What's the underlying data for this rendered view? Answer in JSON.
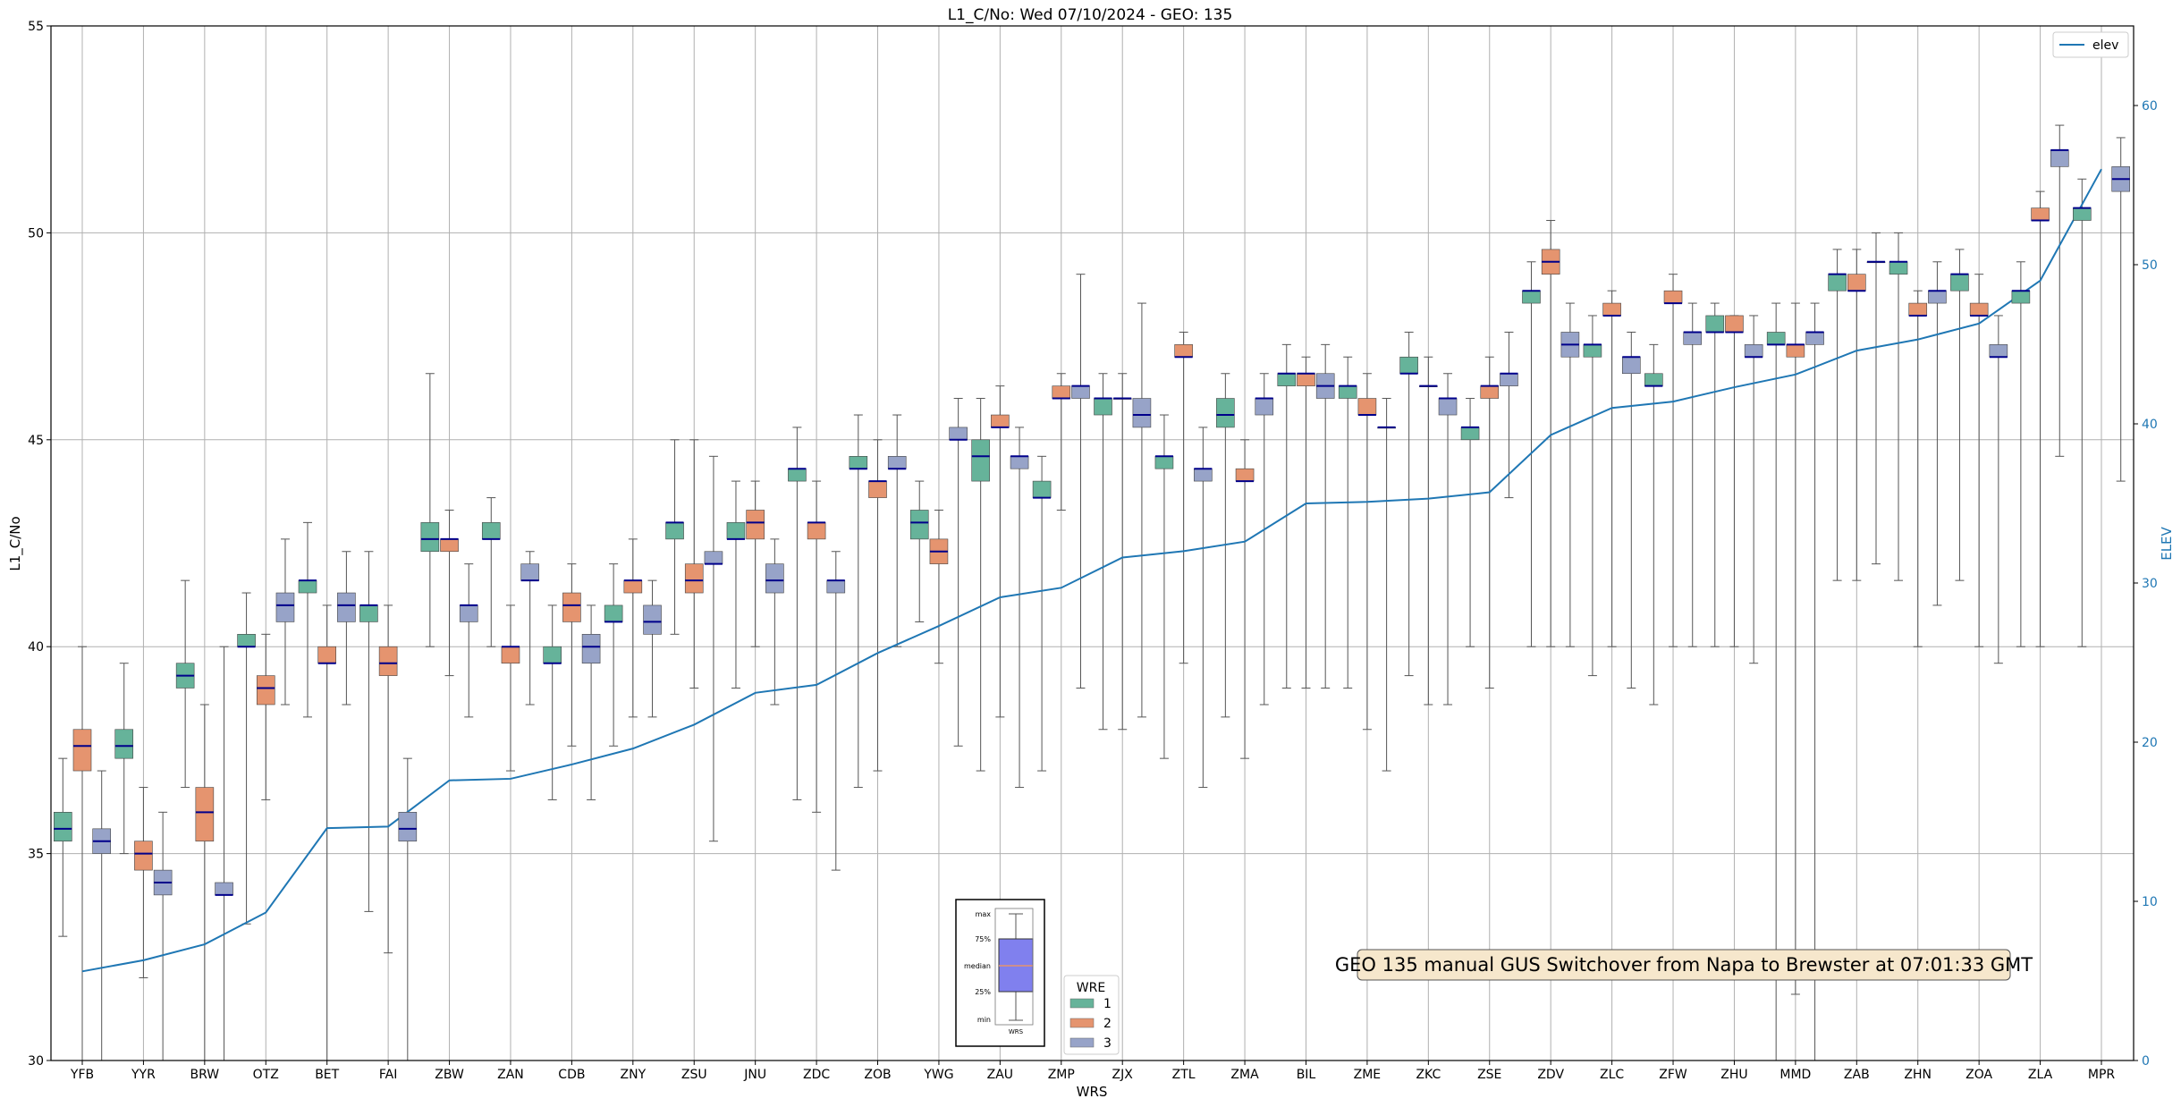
{
  "chart_data": {
    "type": "box",
    "title": "L1_C/No: Wed 07/10/2024 - GEO: 135",
    "xlabel": "WRS",
    "ylabel": "L1_C/No",
    "y2label": "ELEV",
    "ylim": [
      30,
      55
    ],
    "y2lim": [
      0,
      65
    ],
    "yticks": [
      30,
      35,
      40,
      45,
      50,
      55
    ],
    "y2ticks": [
      0,
      10,
      20,
      30,
      40,
      50,
      60
    ],
    "grid": true,
    "categories": [
      "YFB",
      "YYR",
      "BRW",
      "OTZ",
      "BET",
      "FAI",
      "ZBW",
      "ZAN",
      "CDB",
      "ZNY",
      "ZSU",
      "JNU",
      "ZDC",
      "ZOB",
      "YWG",
      "ZAU",
      "ZMP",
      "ZJX",
      "ZTL",
      "ZMA",
      "BIL",
      "ZME",
      "ZKC",
      "ZSE",
      "ZDV",
      "ZLC",
      "ZFW",
      "ZHU",
      "MMD",
      "ZAB",
      "ZHN",
      "ZOA",
      "ZLA",
      "MPR"
    ],
    "legend_title": "WRE",
    "series": [
      {
        "name": "1",
        "color": "#66b39a"
      },
      {
        "name": "2",
        "color": "#e5946f"
      },
      {
        "name": "3",
        "color": "#97a3c8"
      }
    ],
    "boxes": [
      {
        "station": "YFB",
        "wre": 1,
        "min": 33.0,
        "q1": 35.3,
        "median": 35.6,
        "q3": 36.0,
        "max": 37.3
      },
      {
        "station": "YFB",
        "wre": 2,
        "min": 30.0,
        "q1": 37.0,
        "median": 37.6,
        "q3": 38.0,
        "max": 40.0
      },
      {
        "station": "YFB",
        "wre": 3,
        "min": 30.0,
        "q1": 35.0,
        "median": 35.3,
        "q3": 35.6,
        "max": 37.0
      },
      {
        "station": "YYR",
        "wre": 1,
        "min": 35.0,
        "q1": 37.3,
        "median": 37.6,
        "q3": 38.0,
        "max": 39.6
      },
      {
        "station": "YYR",
        "wre": 2,
        "min": 32.0,
        "q1": 34.6,
        "median": 35.0,
        "q3": 35.3,
        "max": 36.6
      },
      {
        "station": "YYR",
        "wre": 3,
        "min": 30.0,
        "q1": 34.0,
        "median": 34.3,
        "q3": 34.6,
        "max": 36.0
      },
      {
        "station": "BRW",
        "wre": 1,
        "min": 36.6,
        "q1": 39.0,
        "median": 39.3,
        "q3": 39.6,
        "max": 41.6
      },
      {
        "station": "BRW",
        "wre": 2,
        "min": 30.0,
        "q1": 35.3,
        "median": 36.0,
        "q3": 36.6,
        "max": 38.6
      },
      {
        "station": "BRW",
        "wre": 3,
        "min": 30.0,
        "q1": 34.0,
        "median": 34.0,
        "q3": 34.3,
        "max": 40.0
      },
      {
        "station": "OTZ",
        "wre": 1,
        "min": 33.3,
        "q1": 40.0,
        "median": 40.0,
        "q3": 40.3,
        "max": 41.3
      },
      {
        "station": "OTZ",
        "wre": 2,
        "min": 36.3,
        "q1": 38.6,
        "median": 39.0,
        "q3": 39.3,
        "max": 40.3
      },
      {
        "station": "OTZ",
        "wre": 3,
        "min": 38.6,
        "q1": 40.6,
        "median": 41.0,
        "q3": 41.3,
        "max": 42.6
      },
      {
        "station": "BET",
        "wre": 1,
        "min": 38.3,
        "q1": 41.3,
        "median": 41.6,
        "q3": 41.6,
        "max": 43.0
      },
      {
        "station": "BET",
        "wre": 2,
        "min": 30.0,
        "q1": 39.6,
        "median": 39.6,
        "q3": 40.0,
        "max": 41.0
      },
      {
        "station": "BET",
        "wre": 3,
        "min": 38.6,
        "q1": 40.6,
        "median": 41.0,
        "q3": 41.3,
        "max": 42.3
      },
      {
        "station": "FAI",
        "wre": 1,
        "min": 33.6,
        "q1": 40.6,
        "median": 41.0,
        "q3": 41.0,
        "max": 42.3
      },
      {
        "station": "FAI",
        "wre": 2,
        "min": 32.6,
        "q1": 39.3,
        "median": 39.6,
        "q3": 40.0,
        "max": 41.0
      },
      {
        "station": "FAI",
        "wre": 3,
        "min": 30.0,
        "q1": 35.3,
        "median": 35.6,
        "q3": 36.0,
        "max": 37.3
      },
      {
        "station": "ZBW",
        "wre": 1,
        "min": 40.0,
        "q1": 42.3,
        "median": 42.6,
        "q3": 43.0,
        "max": 46.6
      },
      {
        "station": "ZBW",
        "wre": 2,
        "min": 39.3,
        "q1": 42.3,
        "median": 42.6,
        "q3": 42.6,
        "max": 43.3
      },
      {
        "station": "ZBW",
        "wre": 3,
        "min": 38.3,
        "q1": 40.6,
        "median": 41.0,
        "q3": 41.0,
        "max": 42.0
      },
      {
        "station": "ZAN",
        "wre": 1,
        "min": 40.0,
        "q1": 42.6,
        "median": 42.6,
        "q3": 43.0,
        "max": 43.6
      },
      {
        "station": "ZAN",
        "wre": 2,
        "min": 37.0,
        "q1": 39.6,
        "median": 40.0,
        "q3": 40.0,
        "max": 41.0
      },
      {
        "station": "ZAN",
        "wre": 3,
        "min": 38.6,
        "q1": 41.6,
        "median": 41.6,
        "q3": 42.0,
        "max": 42.3
      },
      {
        "station": "CDB",
        "wre": 1,
        "min": 36.3,
        "q1": 39.6,
        "median": 39.6,
        "q3": 40.0,
        "max": 41.0
      },
      {
        "station": "CDB",
        "wre": 2,
        "min": 37.6,
        "q1": 40.6,
        "median": 41.0,
        "q3": 41.3,
        "max": 42.0
      },
      {
        "station": "CDB",
        "wre": 3,
        "min": 36.3,
        "q1": 39.6,
        "median": 40.0,
        "q3": 40.3,
        "max": 41.0
      },
      {
        "station": "ZNY",
        "wre": 1,
        "min": 37.6,
        "q1": 40.6,
        "median": 40.6,
        "q3": 41.0,
        "max": 42.0
      },
      {
        "station": "ZNY",
        "wre": 2,
        "min": 38.3,
        "q1": 41.3,
        "median": 41.6,
        "q3": 41.6,
        "max": 42.6
      },
      {
        "station": "ZNY",
        "wre": 3,
        "min": 38.3,
        "q1": 40.3,
        "median": 40.6,
        "q3": 41.0,
        "max": 41.6
      },
      {
        "station": "ZSU",
        "wre": 1,
        "min": 40.3,
        "q1": 42.6,
        "median": 43.0,
        "q3": 43.0,
        "max": 45.0
      },
      {
        "station": "ZSU",
        "wre": 2,
        "min": 39.0,
        "q1": 41.3,
        "median": 41.6,
        "q3": 42.0,
        "max": 45.0
      },
      {
        "station": "ZSU",
        "wre": 3,
        "min": 35.3,
        "q1": 42.0,
        "median": 42.0,
        "q3": 42.3,
        "max": 44.6
      },
      {
        "station": "JNU",
        "wre": 1,
        "min": 39.0,
        "q1": 42.6,
        "median": 42.6,
        "q3": 43.0,
        "max": 44.0
      },
      {
        "station": "JNU",
        "wre": 2,
        "min": 40.0,
        "q1": 42.6,
        "median": 43.0,
        "q3": 43.3,
        "max": 44.0
      },
      {
        "station": "JNU",
        "wre": 3,
        "min": 38.6,
        "q1": 41.3,
        "median": 41.6,
        "q3": 42.0,
        "max": 42.6
      },
      {
        "station": "ZDC",
        "wre": 1,
        "min": 36.3,
        "q1": 44.0,
        "median": 44.3,
        "q3": 44.3,
        "max": 45.3
      },
      {
        "station": "ZDC",
        "wre": 2,
        "min": 36.0,
        "q1": 42.6,
        "median": 43.0,
        "q3": 43.0,
        "max": 44.0
      },
      {
        "station": "ZDC",
        "wre": 3,
        "min": 34.6,
        "q1": 41.3,
        "median": 41.6,
        "q3": 41.6,
        "max": 42.3
      },
      {
        "station": "ZOB",
        "wre": 1,
        "min": 36.6,
        "q1": 44.3,
        "median": 44.3,
        "q3": 44.6,
        "max": 45.6
      },
      {
        "station": "ZOB",
        "wre": 2,
        "min": 37.0,
        "q1": 43.6,
        "median": 44.0,
        "q3": 44.0,
        "max": 45.0
      },
      {
        "station": "ZOB",
        "wre": 3,
        "min": 40.0,
        "q1": 44.3,
        "median": 44.3,
        "q3": 44.6,
        "max": 45.6
      },
      {
        "station": "YWG",
        "wre": 1,
        "min": 40.6,
        "q1": 42.6,
        "median": 43.0,
        "q3": 43.3,
        "max": 44.0
      },
      {
        "station": "YWG",
        "wre": 2,
        "min": 39.6,
        "q1": 42.0,
        "median": 42.3,
        "q3": 42.6,
        "max": 43.3
      },
      {
        "station": "YWG",
        "wre": 3,
        "min": 37.6,
        "q1": 45.0,
        "median": 45.0,
        "q3": 45.3,
        "max": 46.0
      },
      {
        "station": "ZAU",
        "wre": 1,
        "min": 37.0,
        "q1": 44.0,
        "median": 44.6,
        "q3": 45.0,
        "max": 46.0
      },
      {
        "station": "ZAU",
        "wre": 2,
        "min": 38.3,
        "q1": 45.3,
        "median": 45.3,
        "q3": 45.6,
        "max": 46.3
      },
      {
        "station": "ZAU",
        "wre": 3,
        "min": 36.6,
        "q1": 44.3,
        "median": 44.6,
        "q3": 44.6,
        "max": 45.3
      },
      {
        "station": "ZMP",
        "wre": 1,
        "min": 37.0,
        "q1": 43.6,
        "median": 43.6,
        "q3": 44.0,
        "max": 44.6
      },
      {
        "station": "ZMP",
        "wre": 2,
        "min": 43.3,
        "q1": 46.0,
        "median": 46.0,
        "q3": 46.3,
        "max": 46.6
      },
      {
        "station": "ZMP",
        "wre": 3,
        "min": 39.0,
        "q1": 46.0,
        "median": 46.3,
        "q3": 46.3,
        "max": 49.0
      },
      {
        "station": "ZJX",
        "wre": 1,
        "min": 38.0,
        "q1": 45.6,
        "median": 46.0,
        "q3": 46.0,
        "max": 46.6
      },
      {
        "station": "ZJX",
        "wre": 2,
        "min": 38.0,
        "q1": 46.0,
        "median": 46.0,
        "q3": 46.0,
        "max": 46.6
      },
      {
        "station": "ZJX",
        "wre": 3,
        "min": 38.3,
        "q1": 45.3,
        "median": 45.6,
        "q3": 46.0,
        "max": 48.3
      },
      {
        "station": "ZTL",
        "wre": 1,
        "min": 37.3,
        "q1": 44.3,
        "median": 44.6,
        "q3": 44.6,
        "max": 45.6
      },
      {
        "station": "ZTL",
        "wre": 2,
        "min": 39.6,
        "q1": 47.0,
        "median": 47.0,
        "q3": 47.3,
        "max": 47.6
      },
      {
        "station": "ZTL",
        "wre": 3,
        "min": 36.6,
        "q1": 44.0,
        "median": 44.3,
        "q3": 44.3,
        "max": 45.3
      },
      {
        "station": "ZMA",
        "wre": 1,
        "min": 38.3,
        "q1": 45.3,
        "median": 45.6,
        "q3": 46.0,
        "max": 46.6
      },
      {
        "station": "ZMA",
        "wre": 2,
        "min": 37.3,
        "q1": 44.0,
        "median": 44.0,
        "q3": 44.3,
        "max": 45.0
      },
      {
        "station": "ZMA",
        "wre": 3,
        "min": 38.6,
        "q1": 45.6,
        "median": 46.0,
        "q3": 46.0,
        "max": 46.6
      },
      {
        "station": "BIL",
        "wre": 1,
        "min": 39.0,
        "q1": 46.3,
        "median": 46.6,
        "q3": 46.6,
        "max": 47.3
      },
      {
        "station": "BIL",
        "wre": 2,
        "min": 39.0,
        "q1": 46.3,
        "median": 46.6,
        "q3": 46.6,
        "max": 47.0
      },
      {
        "station": "BIL",
        "wre": 3,
        "min": 39.0,
        "q1": 46.0,
        "median": 46.3,
        "q3": 46.6,
        "max": 47.3
      },
      {
        "station": "ZME",
        "wre": 1,
        "min": 39.0,
        "q1": 46.0,
        "median": 46.3,
        "q3": 46.3,
        "max": 47.0
      },
      {
        "station": "ZME",
        "wre": 2,
        "min": 38.0,
        "q1": 45.6,
        "median": 45.6,
        "q3": 46.0,
        "max": 46.6
      },
      {
        "station": "ZME",
        "wre": 3,
        "min": 37.0,
        "q1": 45.3,
        "median": 45.3,
        "q3": 45.3,
        "max": 46.0
      },
      {
        "station": "ZKC",
        "wre": 1,
        "min": 39.3,
        "q1": 46.6,
        "median": 46.6,
        "q3": 47.0,
        "max": 47.6
      },
      {
        "station": "ZKC",
        "wre": 2,
        "min": 38.6,
        "q1": 46.3,
        "median": 46.3,
        "q3": 46.3,
        "max": 47.0
      },
      {
        "station": "ZKC",
        "wre": 3,
        "min": 38.6,
        "q1": 45.6,
        "median": 46.0,
        "q3": 46.0,
        "max": 46.6
      },
      {
        "station": "ZSE",
        "wre": 1,
        "min": 40.0,
        "q1": 45.0,
        "median": 45.3,
        "q3": 45.3,
        "max": 46.0
      },
      {
        "station": "ZSE",
        "wre": 2,
        "min": 39.0,
        "q1": 46.0,
        "median": 46.3,
        "q3": 46.3,
        "max": 47.0
      },
      {
        "station": "ZSE",
        "wre": 3,
        "min": 43.6,
        "q1": 46.3,
        "median": 46.6,
        "q3": 46.6,
        "max": 47.6
      },
      {
        "station": "ZDV",
        "wre": 1,
        "min": 40.0,
        "q1": 48.3,
        "median": 48.6,
        "q3": 48.6,
        "max": 49.3
      },
      {
        "station": "ZDV",
        "wre": 2,
        "min": 40.0,
        "q1": 49.0,
        "median": 49.3,
        "q3": 49.6,
        "max": 50.3
      },
      {
        "station": "ZDV",
        "wre": 3,
        "min": 40.0,
        "q1": 47.0,
        "median": 47.3,
        "q3": 47.6,
        "max": 48.3
      },
      {
        "station": "ZLC",
        "wre": 1,
        "min": 39.3,
        "q1": 47.0,
        "median": 47.3,
        "q3": 47.3,
        "max": 48.0
      },
      {
        "station": "ZLC",
        "wre": 2,
        "min": 40.0,
        "q1": 48.0,
        "median": 48.0,
        "q3": 48.3,
        "max": 48.6
      },
      {
        "station": "ZLC",
        "wre": 3,
        "min": 39.0,
        "q1": 46.6,
        "median": 47.0,
        "q3": 47.0,
        "max": 47.6
      },
      {
        "station": "ZFW",
        "wre": 1,
        "min": 38.6,
        "q1": 46.3,
        "median": 46.3,
        "q3": 46.6,
        "max": 47.3
      },
      {
        "station": "ZFW",
        "wre": 2,
        "min": 40.0,
        "q1": 48.3,
        "median": 48.3,
        "q3": 48.6,
        "max": 49.0
      },
      {
        "station": "ZFW",
        "wre": 3,
        "min": 40.0,
        "q1": 47.3,
        "median": 47.6,
        "q3": 47.6,
        "max": 48.3
      },
      {
        "station": "ZHU",
        "wre": 1,
        "min": 40.0,
        "q1": 47.6,
        "median": 47.6,
        "q3": 48.0,
        "max": 48.3
      },
      {
        "station": "ZHU",
        "wre": 2,
        "min": 40.0,
        "q1": 47.6,
        "median": 47.6,
        "q3": 48.0,
        "max": 48.0
      },
      {
        "station": "ZHU",
        "wre": 3,
        "min": 39.6,
        "q1": 47.0,
        "median": 47.0,
        "q3": 47.3,
        "max": 48.0
      },
      {
        "station": "MMD",
        "wre": 1,
        "min": 30.0,
        "q1": 47.3,
        "median": 47.3,
        "q3": 47.6,
        "max": 48.3
      },
      {
        "station": "MMD",
        "wre": 2,
        "min": 31.6,
        "q1": 47.0,
        "median": 47.3,
        "q3": 47.3,
        "max": 48.3
      },
      {
        "station": "MMD",
        "wre": 3,
        "min": 30.0,
        "q1": 47.3,
        "median": 47.6,
        "q3": 47.6,
        "max": 48.3
      },
      {
        "station": "ZAB",
        "wre": 1,
        "min": 41.6,
        "q1": 48.6,
        "median": 49.0,
        "q3": 49.0,
        "max": 49.6
      },
      {
        "station": "ZAB",
        "wre": 2,
        "min": 41.6,
        "q1": 48.6,
        "median": 48.6,
        "q3": 49.0,
        "max": 49.6
      },
      {
        "station": "ZAB",
        "wre": 3,
        "min": 42.0,
        "q1": 49.3,
        "median": 49.3,
        "q3": 49.3,
        "max": 50.0
      },
      {
        "station": "ZHN",
        "wre": 1,
        "min": 41.6,
        "q1": 49.0,
        "median": 49.3,
        "q3": 49.3,
        "max": 50.0
      },
      {
        "station": "ZHN",
        "wre": 2,
        "min": 40.0,
        "q1": 48.0,
        "median": 48.0,
        "q3": 48.3,
        "max": 48.6
      },
      {
        "station": "ZHN",
        "wre": 3,
        "min": 41.0,
        "q1": 48.3,
        "median": 48.6,
        "q3": 48.6,
        "max": 49.3
      },
      {
        "station": "ZOA",
        "wre": 1,
        "min": 41.6,
        "q1": 48.6,
        "median": 49.0,
        "q3": 49.0,
        "max": 49.6
      },
      {
        "station": "ZOA",
        "wre": 2,
        "min": 40.0,
        "q1": 48.0,
        "median": 48.0,
        "q3": 48.3,
        "max": 49.0
      },
      {
        "station": "ZOA",
        "wre": 3,
        "min": 39.6,
        "q1": 47.0,
        "median": 47.0,
        "q3": 47.3,
        "max": 48.0
      },
      {
        "station": "ZLA",
        "wre": 1,
        "min": 40.0,
        "q1": 48.3,
        "median": 48.6,
        "q3": 48.6,
        "max": 49.3
      },
      {
        "station": "ZLA",
        "wre": 2,
        "min": 40.0,
        "q1": 50.3,
        "median": 50.3,
        "q3": 50.6,
        "max": 51.0
      },
      {
        "station": "ZLA",
        "wre": 3,
        "min": 44.6,
        "q1": 51.6,
        "median": 52.0,
        "q3": 52.0,
        "max": 52.6
      },
      {
        "station": "MPR",
        "wre": 1,
        "min": 40.0,
        "q1": 50.3,
        "median": 50.6,
        "q3": 50.6,
        "max": 51.3
      },
      {
        "station": "MPR",
        "wre": 3,
        "min": 44.0,
        "q1": 51.0,
        "median": 51.3,
        "q3": 51.6,
        "max": 52.3
      }
    ],
    "elev_series": {
      "name": "elev",
      "color": "#1f77b4",
      "values": [
        5.6,
        6.3,
        7.3,
        9.3,
        14.6,
        14.7,
        17.6,
        17.7,
        18.6,
        19.6,
        21.1,
        23.1,
        23.6,
        25.6,
        27.3,
        29.1,
        29.7,
        31.6,
        32.0,
        32.6,
        35.0,
        35.1,
        35.3,
        35.7,
        39.3,
        41.0,
        41.4,
        42.3,
        43.1,
        44.6,
        45.3,
        46.3,
        49.0,
        56.0
      ]
    },
    "annotation": "GEO 135 manual GUS Switchover from Napa to Brewster at 07:01:33 GMT",
    "inset_key": {
      "labels": [
        "max",
        "75%",
        "median",
        "25%",
        "min"
      ],
      "xlabel": "WRS"
    }
  }
}
